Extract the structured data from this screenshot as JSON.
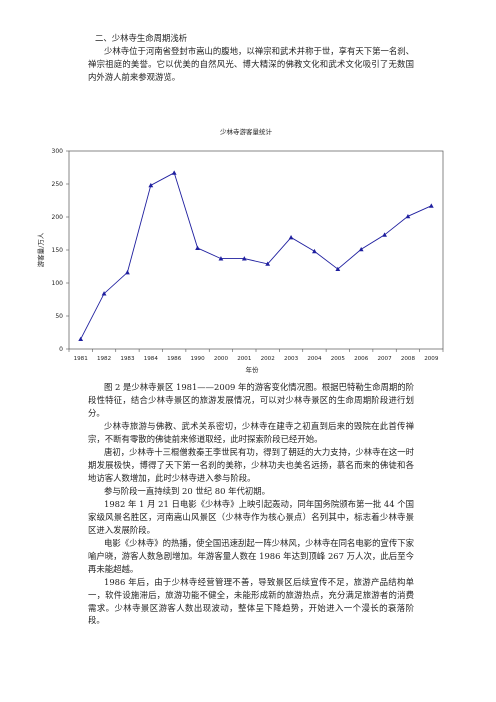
{
  "document": {
    "heading": "二、少林寺生命周期浅析",
    "intro": "少林寺位于河南省登封市嵩山的腹地，以禅宗和武术并称于世，享有天下第一名刹、禅宗祖庭的美誉。它以优美的自然风光、博大精深的佛教文化和武术文化吸引了无数国内外游人前来参观游览。",
    "paragraphs": [
      "图 2 是少林寺景区 1981——2009 年的游客变化情况图。根据巴特勒生命周期的阶段性特征，结合少林寺景区的旅游发展情况，可以对少林寺景区的生命周期阶段进行划分。",
      "少林寺旅游与佛教、武术关系密切，少林寺在建寺之初直到后来的毁院在此首传禅宗，不断有零散的佛徒前来修道取经，此时探索阶段已经开始。",
      "唐初，少林寺十三棍僧救秦王李世民有功，得到了朝廷的大力支持，少林寺在这一时期发展极快，博得了天下第一名刹的美称，少林功夫也美名远扬，慕名而来的佛徒和各地访客人数增加，此时少林寺进入参与阶段。",
      "参与阶段一直持续到 20 世纪 80 年代初期。",
      "1982 年 1 月 21 日电影《少林寺》上映引起轰动，同年国务院颁布第一批 44 个国家级风景名胜区，河南嵩山风景区（少林寺作为核心景点）名列其中，标志着少林寺景区进入发展阶段。",
      "电影《少林寺》的热播，使全国迅速刮起一阵少林风，少林寺在同名电影的宣传下家喻户晓，游客人数急剧增加。年游客量人数在 1986 年达到顶峰 267 万人次，此后至今再未能超越。",
      "1986 年后，由于少林寺经营管理不善，导致景区后续宣传不足，旅游产品结构单一，软件设施滞后，旅游功能不健全，未能形成新的旅游热点，充分满足旅游者的消费需求。少林寺景区游客人数出现波动，整体呈下降趋势，开始进入一个漫长的衰落阶段。"
    ]
  },
  "chart_data": {
    "type": "line",
    "title": "少林寺游客量统计",
    "xlabel": "年份",
    "ylabel": "游客量/万人",
    "categories": [
      "1981",
      "1982",
      "1983",
      "1984",
      "1986",
      "1990",
      "2000",
      "2001",
      "2002",
      "2003",
      "2004",
      "2005",
      "2006",
      "2007",
      "2008",
      "2009"
    ],
    "values": [
      15,
      84,
      116,
      248,
      267,
      153,
      137,
      137,
      129,
      169,
      148,
      121,
      151,
      173,
      201,
      217
    ],
    "ylim": [
      0,
      300
    ],
    "yticks": [
      0,
      50,
      100,
      150,
      200,
      250,
      300
    ],
    "grid": false,
    "line_color": "#1f1f9f",
    "marker": "triangle"
  }
}
